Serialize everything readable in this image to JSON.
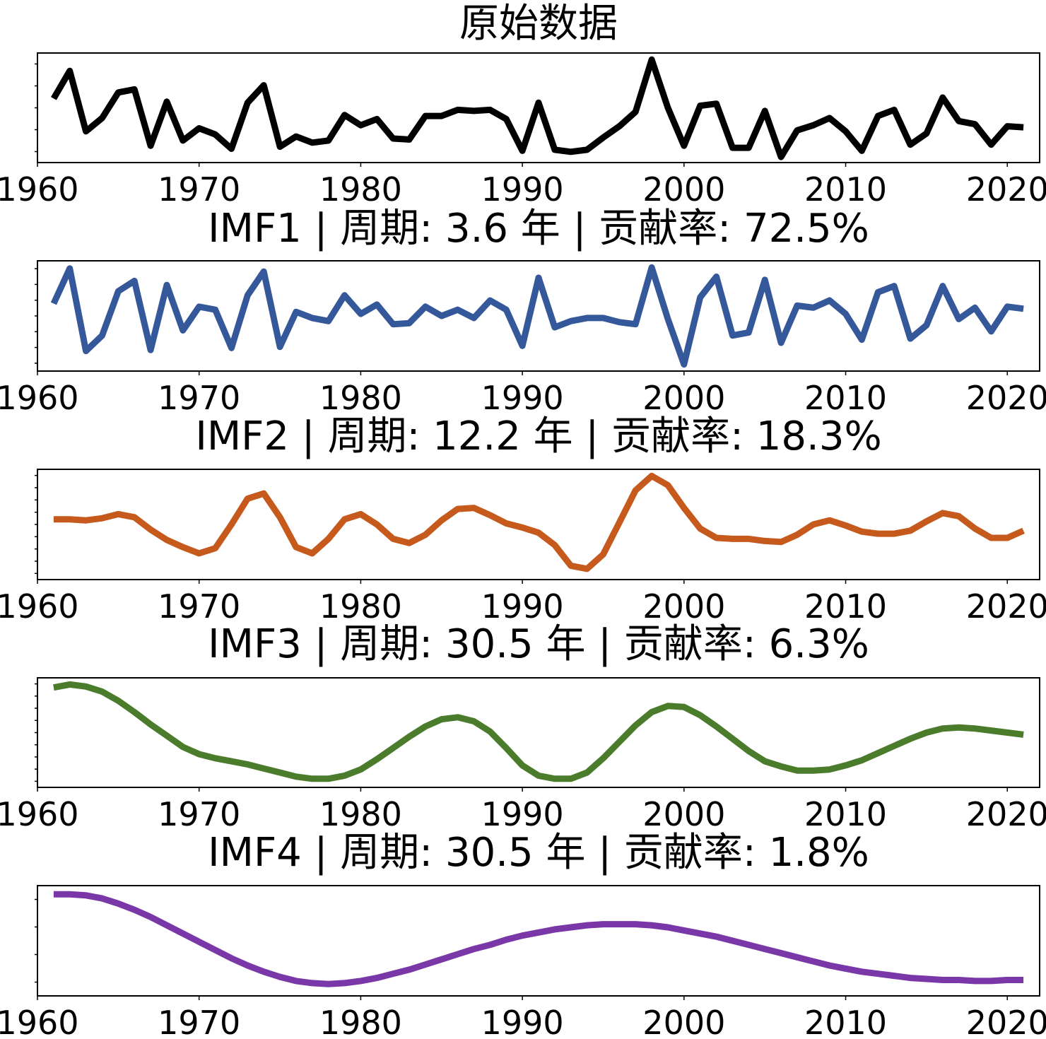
{
  "chart_data": [
    {
      "type": "line",
      "title": "原始数据",
      "color": "#000000",
      "xlim": [
        1960,
        2022
      ],
      "ylim": [
        0,
        100
      ],
      "xticks": [
        1960,
        1970,
        1980,
        1990,
        2000,
        2010,
        2020
      ],
      "ytick_count": 5,
      "x": [
        1961,
        1962,
        1963,
        1964,
        1965,
        1966,
        1967,
        1968,
        1969,
        1970,
        1971,
        1972,
        1973,
        1974,
        1975,
        1976,
        1977,
        1978,
        1979,
        1980,
        1981,
        1982,
        1983,
        1984,
        1985,
        1986,
        1987,
        1988,
        1989,
        1990,
        1991,
        1992,
        1993,
        1994,
        1995,
        1996,
        1997,
        1998,
        1999,
        2000,
        2001,
        2002,
        2003,
        2004,
        2005,
        2006,
        2007,
        2008,
        2009,
        2010,
        2011,
        2012,
        2013,
        2014,
        2015,
        2016,
        2017,
        2018,
        2019,
        2020,
        2021
      ],
      "values": [
        59,
        86,
        27,
        40,
        65,
        68,
        13,
        56,
        18,
        30,
        24,
        10,
        55,
        72,
        12,
        22,
        16,
        18,
        43,
        33,
        39,
        20,
        19,
        42,
        42,
        48,
        47,
        48,
        39,
        8,
        55,
        9,
        7,
        9,
        21,
        32,
        46,
        97,
        50,
        13,
        52,
        54,
        11,
        11,
        47,
        2,
        28,
        33,
        40,
        27,
        8,
        42,
        48,
        14,
        25,
        60,
        37,
        34,
        14,
        32,
        31
      ]
    },
    {
      "type": "line",
      "title": "IMF1 | 周期: 3.6 年 | 贡献率: 72.5%",
      "color": "#34589a",
      "xlim": [
        1960,
        2022
      ],
      "ylim": [
        0,
        100
      ],
      "xticks": [
        1960,
        1970,
        1980,
        1990,
        2000,
        2010,
        2020
      ],
      "ytick_count": 7,
      "x": [
        1961,
        1962,
        1963,
        1964,
        1965,
        1966,
        1967,
        1968,
        1969,
        1970,
        1971,
        1972,
        1973,
        1974,
        1975,
        1976,
        1977,
        1978,
        1979,
        1980,
        1981,
        1982,
        1983,
        1984,
        1985,
        1986,
        1987,
        1988,
        1989,
        1990,
        1991,
        1992,
        1993,
        1994,
        1995,
        1996,
        1997,
        1998,
        1999,
        2000,
        2001,
        2002,
        2003,
        2004,
        2005,
        2006,
        2007,
        2008,
        2009,
        2010,
        2011,
        2012,
        2013,
        2014,
        2015,
        2016,
        2017,
        2018,
        2019,
        2020,
        2021
      ],
      "values": [
        62,
        96,
        16,
        31,
        74,
        84,
        17,
        80,
        36,
        59,
        56,
        19,
        70,
        93,
        20,
        54,
        48,
        45,
        70,
        52,
        61,
        42,
        43,
        59,
        50,
        56,
        48,
        65,
        56,
        21,
        87,
        39,
        45,
        48,
        48,
        44,
        42,
        97,
        47,
        3,
        68,
        88,
        31,
        34,
        85,
        24,
        60,
        58,
        65,
        52,
        27,
        73,
        79,
        28,
        41,
        79,
        47,
        58,
        35,
        59,
        57
      ]
    },
    {
      "type": "line",
      "title": "IMF2 | 周期: 12.2 年 | 贡献率: 18.3%",
      "color": "#c65a1c",
      "xlim": [
        1960,
        2022
      ],
      "ylim": [
        0,
        100
      ],
      "xticks": [
        1960,
        1970,
        1980,
        1990,
        2000,
        2010,
        2020
      ],
      "ytick_count": 9,
      "x": [
        1961,
        1962,
        1963,
        1964,
        1965,
        1966,
        1967,
        1968,
        1969,
        1970,
        1971,
        1972,
        1973,
        1974,
        1975,
        1976,
        1977,
        1978,
        1979,
        1980,
        1981,
        1982,
        1983,
        1984,
        1985,
        1986,
        1987,
        1988,
        1989,
        1990,
        1991,
        1992,
        1993,
        1994,
        1995,
        1996,
        1997,
        1998,
        1999,
        2000,
        2001,
        2002,
        2003,
        2004,
        2005,
        2006,
        2007,
        2008,
        2009,
        2010,
        2011,
        2012,
        2013,
        2014,
        2015,
        2016,
        2017,
        2018,
        2019,
        2020,
        2021
      ],
      "values": [
        55,
        55,
        54,
        56,
        60,
        57,
        45,
        35,
        28,
        22,
        27,
        50,
        75,
        80,
        57,
        28,
        22,
        36,
        55,
        60,
        50,
        36,
        32,
        40,
        54,
        65,
        66,
        59,
        51,
        47,
        42,
        30,
        10,
        7,
        21,
        52,
        83,
        97,
        88,
        66,
        46,
        37,
        36,
        36,
        34,
        33,
        40,
        50,
        54,
        49,
        43,
        41,
        41,
        44,
        53,
        61,
        58,
        46,
        37,
        37,
        44
      ]
    },
    {
      "type": "line",
      "title": "IMF3 | 周期: 30.5 年 | 贡献率: 6.3%",
      "color": "#4a7c2c",
      "xlim": [
        1960,
        2022
      ],
      "ylim": [
        0,
        100
      ],
      "xticks": [
        1960,
        1970,
        1980,
        1990,
        2000,
        2010,
        2020
      ],
      "ytick_count": 9,
      "x": [
        1961,
        1962,
        1963,
        1964,
        1965,
        1966,
        1967,
        1968,
        1969,
        1970,
        1971,
        1972,
        1973,
        1974,
        1975,
        1976,
        1977,
        1978,
        1979,
        1980,
        1981,
        1982,
        1983,
        1984,
        1985,
        1986,
        1987,
        1988,
        1989,
        1990,
        1991,
        1992,
        1993,
        1994,
        1995,
        1996,
        1997,
        1998,
        1999,
        2000,
        2001,
        2002,
        2003,
        2004,
        2005,
        2006,
        2007,
        2008,
        2009,
        2010,
        2011,
        2012,
        2013,
        2014,
        2015,
        2016,
        2017,
        2018,
        2019,
        2020,
        2021
      ],
      "values": [
        94,
        97,
        95,
        90,
        81,
        70,
        58,
        47,
        36,
        29,
        25,
        22,
        19,
        15,
        11,
        7,
        5,
        5,
        8,
        14,
        24,
        35,
        46,
        56,
        63,
        65,
        61,
        51,
        35,
        18,
        8,
        5,
        5,
        11,
        25,
        41,
        57,
        70,
        76,
        75,
        67,
        56,
        44,
        32,
        22,
        17,
        13,
        13,
        14,
        18,
        23,
        30,
        37,
        44,
        50,
        54,
        55,
        54,
        52,
        50,
        48
      ]
    },
    {
      "type": "line",
      "title": "IMF4 | 周期: 30.5 年 | 贡献率: 1.8%",
      "color": "#7a37a8",
      "xlim": [
        1960,
        2022
      ],
      "ylim": [
        0,
        100
      ],
      "xticks": [
        1960,
        1970,
        1980,
        1990,
        2000,
        2010,
        2020
      ],
      "ytick_count": 4,
      "x": [
        1961,
        1962,
        1963,
        1964,
        1965,
        1966,
        1967,
        1968,
        1969,
        1970,
        1971,
        1972,
        1973,
        1974,
        1975,
        1976,
        1977,
        1978,
        1979,
        1980,
        1981,
        1982,
        1983,
        1984,
        1985,
        1986,
        1987,
        1988,
        1989,
        1990,
        1991,
        1992,
        1993,
        1994,
        1995,
        1996,
        1997,
        1998,
        1999,
        2000,
        2001,
        2002,
        2003,
        2004,
        2005,
        2006,
        2007,
        2008,
        2009,
        2010,
        2011,
        2012,
        2013,
        2014,
        2015,
        2016,
        2017,
        2018,
        2019,
        2020,
        2021
      ],
      "values": [
        95,
        95,
        94,
        91,
        86,
        80,
        73,
        65,
        57,
        49,
        41,
        33,
        26,
        20,
        15,
        11,
        9,
        8,
        9,
        11,
        14,
        18,
        22,
        27,
        32,
        37,
        42,
        46,
        51,
        55,
        58,
        61,
        63,
        65,
        66,
        66,
        66,
        65,
        63,
        60,
        57,
        54,
        50,
        46,
        42,
        38,
        34,
        30,
        26,
        23,
        20,
        18,
        16,
        14,
        13,
        12,
        12,
        11,
        11,
        12,
        12
      ]
    }
  ]
}
